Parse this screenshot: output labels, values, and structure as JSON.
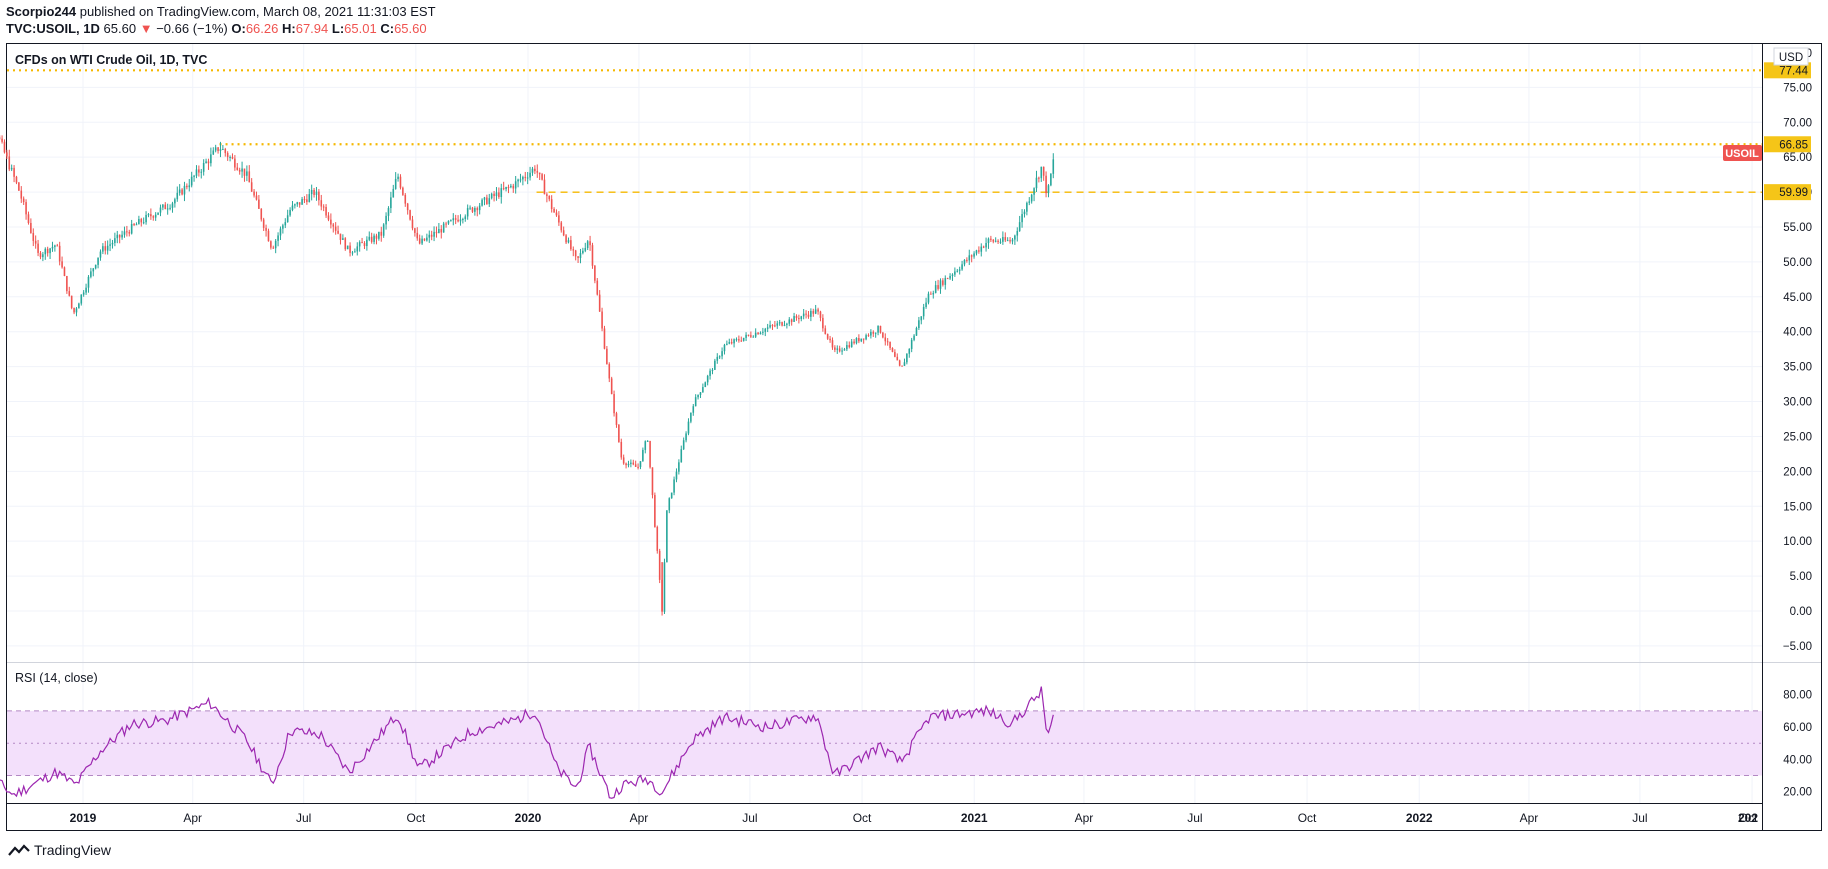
{
  "header": {
    "author": "Scorpio244",
    "published_text": "published on TradingView.com, March 08, 2021 11:31:03 EST",
    "symbol": "TVC:USOIL, 1D",
    "last": "65.60",
    "change_arrow": "▼",
    "change": "−0.66 (−1%)",
    "o_label": "O:",
    "o_value": "66.26",
    "h_label": "H:",
    "h_value": "67.94",
    "l_label": "L:",
    "l_value": "65.01",
    "c_label": "C:",
    "c_value": "65.60"
  },
  "footer": {
    "brand": "TradingView"
  },
  "colors": {
    "up": "#26a69a",
    "down": "#ef5350",
    "level_line": "#f5b800",
    "label_bg": "#f5c518",
    "rsi_line": "#9c27b0",
    "rsi_band": "#f3e0fb",
    "symbol_tag": "#ef5350"
  },
  "chart_data": [
    {
      "type": "candlestick",
      "title": "CFDs on WTI Crude Oil, 1D, TVC",
      "currency": "USD",
      "ylim": [
        -7.5,
        80
      ],
      "y_ticks": [
        "−5.00",
        "0.00",
        "5.00",
        "10.00",
        "15.00",
        "20.00",
        "25.00",
        "30.00",
        "35.00",
        "40.00",
        "45.00",
        "50.00",
        "55.00",
        "60.00",
        "65.00",
        "70.00",
        "75.00"
      ],
      "x_ticks": [
        "2019",
        "Apr",
        "Jul",
        "Oct",
        "2020",
        "Apr",
        "Jul",
        "Oct",
        "2021",
        "Apr",
        "Jul",
        "Oct",
        "2022",
        "Apr",
        "Jul",
        "Oct",
        "202"
      ],
      "price_path": [
        [
          "2018-10-03",
          75.0
        ],
        [
          "2018-10-20",
          69.5
        ],
        [
          "2018-11-10",
          60.0
        ],
        [
          "2018-11-25",
          51.0
        ],
        [
          "2018-12-10",
          52.5
        ],
        [
          "2018-12-24",
          42.5
        ],
        [
          "2019-01-15",
          51.5
        ],
        [
          "2019-02-15",
          55.5
        ],
        [
          "2019-03-15",
          58.5
        ],
        [
          "2019-04-23",
          66.5
        ],
        [
          "2019-05-15",
          62.5
        ],
        [
          "2019-06-05",
          52.0
        ],
        [
          "2019-06-20",
          57.5
        ],
        [
          "2019-07-10",
          60.0
        ],
        [
          "2019-08-07",
          51.5
        ],
        [
          "2019-09-03",
          54.0
        ],
        [
          "2019-09-16",
          62.5
        ],
        [
          "2019-10-03",
          52.5
        ],
        [
          "2019-11-15",
          57.5
        ],
        [
          "2019-12-20",
          61.0
        ],
        [
          "2020-01-07",
          63.5
        ],
        [
          "2020-01-20",
          58.0
        ],
        [
          "2020-02-10",
          50.0
        ],
        [
          "2020-02-20",
          53.5
        ],
        [
          "2020-03-09",
          31.5
        ],
        [
          "2020-03-18",
          21.5
        ],
        [
          "2020-03-31",
          20.5
        ],
        [
          "2020-04-08",
          25.0
        ],
        [
          "2020-04-20",
          0.0
        ],
        [
          "2020-04-24",
          14.5
        ],
        [
          "2020-05-15",
          29.5
        ],
        [
          "2020-06-10",
          38.0
        ],
        [
          "2020-07-15",
          40.5
        ],
        [
          "2020-08-25",
          43.0
        ],
        [
          "2020-09-08",
          37.0
        ],
        [
          "2020-10-15",
          40.5
        ],
        [
          "2020-11-02",
          34.5
        ],
        [
          "2020-11-25",
          45.5
        ],
        [
          "2020-12-18",
          49.0
        ],
        [
          "2021-01-12",
          53.0
        ],
        [
          "2021-02-01",
          53.0
        ],
        [
          "2021-02-25",
          63.5
        ],
        [
          "2021-03-02",
          59.5
        ],
        [
          "2021-03-08",
          65.6
        ]
      ],
      "levels": [
        {
          "value": 77.44,
          "label": "77.44",
          "style": "dotted",
          "start": "2018-10-01"
        },
        {
          "value": 66.85,
          "label": "66.85",
          "style": "dotted",
          "start": "2019-04-23"
        },
        {
          "value": 59.99,
          "label": "59.99",
          "style": "dashed",
          "start": "2020-01-08"
        }
      ],
      "last_price_tag": "USOIL",
      "top_axis_partial": "80.0"
    },
    {
      "type": "line",
      "title": "RSI (14, close)",
      "ylim": [
        10,
        87
      ],
      "band": [
        30,
        70
      ],
      "band_mid": 50,
      "y_ticks": [
        "20.00",
        "40.00",
        "60.00",
        "80.00"
      ],
      "rsi_path": [
        [
          "2018-10-03",
          38
        ],
        [
          "2018-11-05",
          18
        ],
        [
          "2018-12-10",
          32
        ],
        [
          "2018-12-26",
          24
        ],
        [
          "2019-01-15",
          45
        ],
        [
          "2019-02-10",
          62
        ],
        [
          "2019-03-10",
          64
        ],
        [
          "2019-04-15",
          75
        ],
        [
          "2019-05-15",
          52
        ],
        [
          "2019-06-05",
          24
        ],
        [
          "2019-06-20",
          58
        ],
        [
          "2019-07-15",
          55
        ],
        [
          "2019-08-07",
          32
        ],
        [
          "2019-09-16",
          68
        ],
        [
          "2019-10-03",
          34
        ],
        [
          "2019-11-15",
          57
        ],
        [
          "2019-12-20",
          64
        ],
        [
          "2020-01-07",
          70
        ],
        [
          "2020-01-25",
          34
        ],
        [
          "2020-02-10",
          22
        ],
        [
          "2020-02-20",
          48
        ],
        [
          "2020-03-09",
          16
        ],
        [
          "2020-03-18",
          24
        ],
        [
          "2020-04-08",
          28
        ],
        [
          "2020-04-20",
          20
        ],
        [
          "2020-05-15",
          52
        ],
        [
          "2020-06-10",
          66
        ],
        [
          "2020-07-15",
          60
        ],
        [
          "2020-08-25",
          67
        ],
        [
          "2020-09-08",
          30
        ],
        [
          "2020-10-15",
          48
        ],
        [
          "2020-11-02",
          38
        ],
        [
          "2020-11-25",
          66
        ],
        [
          "2020-12-18",
          68
        ],
        [
          "2021-01-12",
          70
        ],
        [
          "2021-02-01",
          62
        ],
        [
          "2021-02-25",
          82
        ],
        [
          "2021-03-02",
          54
        ],
        [
          "2021-03-08",
          68
        ]
      ]
    }
  ]
}
